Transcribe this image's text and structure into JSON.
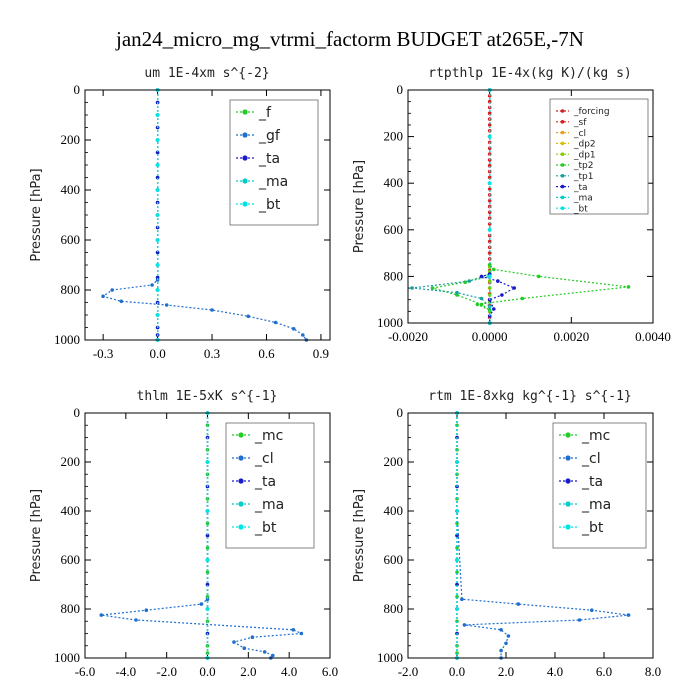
{
  "title": "jan24_micro_mg_vtrmi_factorm  BUDGET at265E,-7N",
  "colors": {
    "green": "#22cc22",
    "blue": "#1f6fd0",
    "navy": "#1a1acc",
    "cyan": "#00cccc",
    "aqua": "#00e5e5",
    "red": "#d42020",
    "orange": "#e8a020",
    "yellow": "#d8c000",
    "olive": "#88cc00",
    "teal": "#1aa0a0"
  },
  "chart_data": [
    {
      "type": "line",
      "title": "um  1E-4xm s^{-2}",
      "ylabel": "Pressure [hPa]",
      "xlim": [
        -0.4,
        0.95
      ],
      "ylim": [
        1000,
        0
      ],
      "xticks": [
        -0.3,
        0.0,
        0.3,
        0.6,
        0.9
      ],
      "xtick_labels": [
        "-0.3",
        "0.0",
        "0.3",
        "0.6",
        "0.9"
      ],
      "yticks": [
        0,
        200,
        400,
        600,
        800,
        1000
      ],
      "ytick_labels": [
        "0",
        "200",
        "400",
        "600",
        "800",
        "1000"
      ],
      "legend_position": "top-right",
      "legend": [
        "_f",
        "_gf",
        "_ta",
        "_ma",
        "_bt"
      ],
      "series": [
        {
          "name": "_f",
          "color_key": "green",
          "x": [
            0,
            0,
            0,
            0,
            0,
            0,
            0,
            0,
            0,
            0,
            0,
            0,
            0,
            0,
            0,
            0,
            0,
            0,
            0,
            0,
            0,
            0
          ],
          "y": [
            0,
            50,
            100,
            150,
            200,
            250,
            300,
            350,
            400,
            450,
            500,
            550,
            600,
            650,
            700,
            750,
            800,
            850,
            900,
            950,
            980,
            1000
          ]
        },
        {
          "name": "_gf",
          "color_key": "blue",
          "x": [
            0,
            0,
            0,
            -0.03,
            -0.25,
            -0.3,
            -0.2,
            0.05,
            0.3,
            0.5,
            0.65,
            0.75,
            0.8,
            0.82
          ],
          "y": [
            0,
            400,
            760,
            780,
            800,
            825,
            845,
            860,
            880,
            905,
            930,
            955,
            980,
            1000
          ]
        },
        {
          "name": "_ta",
          "color_key": "navy",
          "x": [
            0,
            0,
            0,
            0,
            0,
            0,
            0,
            0,
            0,
            0,
            0,
            0,
            0,
            0,
            0,
            0,
            0,
            0,
            0,
            0,
            0,
            0
          ],
          "y": [
            0,
            50,
            100,
            150,
            200,
            250,
            300,
            350,
            400,
            450,
            500,
            550,
            600,
            650,
            700,
            750,
            800,
            850,
            900,
            950,
            980,
            1000
          ]
        },
        {
          "name": "_ma",
          "color_key": "cyan",
          "x": [
            0,
            0,
            0,
            0,
            0,
            0,
            0,
            0,
            0,
            0,
            0
          ],
          "y": [
            0,
            100,
            200,
            300,
            400,
            500,
            600,
            700,
            800,
            900,
            1000
          ]
        },
        {
          "name": "_bt",
          "color_key": "aqua",
          "x": [
            0,
            0,
            0,
            0,
            0,
            0,
            0,
            0,
            0,
            0,
            0
          ],
          "y": [
            0,
            100,
            200,
            300,
            400,
            500,
            600,
            700,
            800,
            900,
            1000
          ]
        }
      ]
    },
    {
      "type": "line",
      "title": "rtpthlp  1E-4x(kg K)/(kg s)",
      "ylabel": "Pressure [hPa]",
      "xlim": [
        -0.002,
        0.004
      ],
      "ylim": [
        1000,
        0
      ],
      "xticks": [
        -0.002,
        0.0,
        0.002,
        0.004
      ],
      "xtick_labels": [
        "-0.0020",
        "0.0000",
        "0.0020",
        "0.0040"
      ],
      "yticks": [
        0,
        200,
        400,
        600,
        800,
        1000
      ],
      "ytick_labels": [
        "0",
        "200",
        "400",
        "600",
        "800",
        "1000"
      ],
      "legend_position": "top-right",
      "legend": [
        "_forcing",
        "_sf",
        "_cl",
        "_dp2",
        "_dp1",
        "_tp2",
        "_tp1",
        "_ta",
        "_ma",
        "_bt"
      ],
      "series": [
        {
          "name": "_forcing",
          "color_key": "red",
          "x": [
            0,
            0,
            0,
            0,
            0,
            0,
            0,
            0,
            0,
            0,
            0,
            0,
            0,
            0,
            0,
            0,
            0,
            0,
            0,
            0,
            0,
            0,
            0,
            0,
            0,
            0,
            0,
            0,
            0,
            0,
            0,
            0,
            0,
            0,
            0,
            0,
            0,
            0,
            0,
            0,
            0
          ],
          "y": [
            0,
            25,
            50,
            75,
            100,
            125,
            150,
            175,
            200,
            225,
            250,
            275,
            300,
            325,
            350,
            375,
            400,
            425,
            450,
            475,
            500,
            525,
            550,
            575,
            600,
            625,
            650,
            675,
            700,
            725,
            750,
            775,
            800,
            825,
            850,
            875,
            900,
            925,
            950,
            975,
            1000
          ]
        },
        {
          "name": "_sf",
          "color_key": "red",
          "x": [
            0,
            0,
            0,
            0,
            0,
            0,
            0,
            0,
            0,
            0,
            0
          ],
          "y": [
            0,
            100,
            200,
            300,
            400,
            500,
            600,
            700,
            800,
            900,
            1000
          ]
        },
        {
          "name": "_cl",
          "color_key": "orange",
          "x": [
            0,
            0,
            0,
            0,
            0,
            0
          ],
          "y": [
            0,
            200,
            400,
            600,
            800,
            1000
          ]
        },
        {
          "name": "_dp2",
          "color_key": "yellow",
          "x": [
            0,
            0,
            0,
            0,
            0,
            0
          ],
          "y": [
            0,
            200,
            400,
            600,
            800,
            1000
          ]
        },
        {
          "name": "_dp1",
          "color_key": "olive",
          "x": [
            0,
            0,
            0,
            0,
            0,
            0,
            0,
            0,
            0,
            0
          ],
          "y": [
            0,
            760,
            780,
            800,
            820,
            850,
            880,
            910,
            950,
            1000
          ]
        },
        {
          "name": "_tp2",
          "color_key": "green",
          "x": [
            0,
            0,
            0.0001,
            0.0012,
            0.0034,
            0.0008,
            -0.0003,
            0,
            -0.0002,
            -0.0008,
            -0.0014,
            -0.0006,
            0,
            0
          ],
          "y": [
            0,
            750,
            770,
            800,
            845,
            895,
            920,
            945,
            920,
            880,
            850,
            825,
            790,
            1000
          ]
        },
        {
          "name": "_tp1",
          "color_key": "teal",
          "x": [
            0,
            0,
            -0.0005,
            -0.0019,
            -0.0008,
            -0.0002,
            0,
            0
          ],
          "y": [
            0,
            800,
            820,
            850,
            870,
            895,
            930,
            1000
          ]
        },
        {
          "name": "_ta",
          "color_key": "navy",
          "x": [
            0,
            0,
            -0.0002,
            0.0002,
            0.0006,
            0.0003,
            0,
            0.0001,
            0,
            0
          ],
          "y": [
            0,
            790,
            800,
            820,
            850,
            880,
            900,
            940,
            970,
            1000
          ]
        },
        {
          "name": "_ma",
          "color_key": "cyan",
          "x": [
            0,
            0,
            0,
            0,
            0,
            0
          ],
          "y": [
            0,
            200,
            400,
            600,
            800,
            1000
          ]
        },
        {
          "name": "_bt",
          "color_key": "aqua",
          "x": [
            0,
            0,
            0,
            0,
            0,
            0
          ],
          "y": [
            0,
            200,
            400,
            600,
            800,
            1000
          ]
        }
      ]
    },
    {
      "type": "line",
      "title": "thlm  1E-5xK s^{-1}",
      "ylabel": "Pressure [hPa]",
      "xlim": [
        -6,
        6
      ],
      "ylim": [
        1000,
        0
      ],
      "xticks": [
        -6,
        -4,
        -2,
        0,
        2,
        4,
        6
      ],
      "xtick_labels": [
        "-6.0",
        "-4.0",
        "-2.0",
        "0.0",
        "2.0",
        "4.0",
        "6.0"
      ],
      "yticks": [
        0,
        200,
        400,
        600,
        800,
        1000
      ],
      "ytick_labels": [
        "0",
        "200",
        "400",
        "600",
        "800",
        "1000"
      ],
      "legend_position": "top-right",
      "legend": [
        "_mc",
        "_cl",
        "_ta",
        "_ma",
        "_bt"
      ],
      "series": [
        {
          "name": "_mc",
          "color_key": "green",
          "x": [
            0,
            0,
            0,
            0,
            0,
            0,
            0,
            0,
            0,
            0,
            0,
            0,
            0,
            0,
            0,
            0,
            0,
            0,
            0,
            0,
            0,
            0
          ],
          "y": [
            0,
            50,
            100,
            150,
            200,
            250,
            300,
            350,
            400,
            450,
            500,
            550,
            600,
            650,
            700,
            750,
            800,
            850,
            900,
            950,
            980,
            1000
          ]
        },
        {
          "name": "_cl",
          "color_key": "blue",
          "x": [
            0,
            0,
            0,
            -0.3,
            -3,
            -5.2,
            -3.5,
            4.2,
            4.6,
            2.2,
            1.3,
            1.8,
            2.8,
            3.2,
            3.1
          ],
          "y": [
            0,
            400,
            760,
            780,
            805,
            825,
            845,
            885,
            900,
            915,
            935,
            960,
            975,
            990,
            1000
          ]
        },
        {
          "name": "_ta",
          "color_key": "navy",
          "x": [
            0,
            0,
            0,
            0,
            0,
            0,
            0,
            0,
            0,
            0,
            0
          ],
          "y": [
            0,
            100,
            200,
            300,
            400,
            500,
            600,
            700,
            800,
            900,
            1000
          ]
        },
        {
          "name": "_ma",
          "color_key": "cyan",
          "x": [
            0,
            0,
            0,
            0,
            0,
            0
          ],
          "y": [
            0,
            200,
            400,
            600,
            800,
            1000
          ]
        },
        {
          "name": "_bt",
          "color_key": "aqua",
          "x": [
            0,
            0,
            0,
            0,
            0,
            0
          ],
          "y": [
            0,
            200,
            400,
            600,
            800,
            1000
          ]
        }
      ]
    },
    {
      "type": "line",
      "title": "rtm  1E-8xkg kg^{-1} s^{-1}",
      "ylabel": "Pressure [hPa]",
      "xlim": [
        -2,
        8
      ],
      "ylim": [
        1000,
        0
      ],
      "xticks": [
        -2,
        0,
        2,
        4,
        6,
        8
      ],
      "xtick_labels": [
        "-2.0",
        "0.0",
        "2.0",
        "4.0",
        "6.0",
        "8.0"
      ],
      "yticks": [
        0,
        200,
        400,
        600,
        800,
        1000
      ],
      "ytick_labels": [
        "0",
        "200",
        "400",
        "600",
        "800",
        "1000"
      ],
      "legend_position": "top-right",
      "legend": [
        "_mc",
        "_cl",
        "_ta",
        "_ma",
        "_bt"
      ],
      "series": [
        {
          "name": "_mc",
          "color_key": "green",
          "x": [
            0,
            0,
            0,
            0,
            0,
            0,
            0,
            0,
            0,
            0,
            0,
            0,
            0,
            0,
            0,
            0,
            0,
            0,
            0,
            0,
            0,
            0
          ],
          "y": [
            0,
            50,
            100,
            150,
            200,
            250,
            300,
            350,
            400,
            450,
            500,
            550,
            600,
            650,
            700,
            750,
            800,
            850,
            900,
            950,
            980,
            1000
          ]
        },
        {
          "name": "_cl",
          "color_key": "blue",
          "x": [
            0,
            0,
            0.2,
            2.5,
            5.5,
            7,
            5,
            0.3,
            1.8,
            2.1,
            2,
            1.8,
            1.8
          ],
          "y": [
            0,
            400,
            760,
            780,
            805,
            825,
            845,
            865,
            885,
            910,
            940,
            970,
            1000
          ]
        },
        {
          "name": "_ta",
          "color_key": "navy",
          "x": [
            0,
            0,
            0,
            0,
            0,
            0,
            0,
            0,
            0,
            0,
            0
          ],
          "y": [
            0,
            100,
            200,
            300,
            400,
            500,
            600,
            700,
            800,
            900,
            1000
          ]
        },
        {
          "name": "_ma",
          "color_key": "cyan",
          "x": [
            0,
            0,
            0,
            0,
            0,
            0
          ],
          "y": [
            0,
            200,
            400,
            600,
            800,
            1000
          ]
        },
        {
          "name": "_bt",
          "color_key": "aqua",
          "x": [
            0,
            0,
            0,
            0,
            0,
            0
          ],
          "y": [
            0,
            200,
            400,
            600,
            800,
            1000
          ]
        }
      ]
    }
  ]
}
